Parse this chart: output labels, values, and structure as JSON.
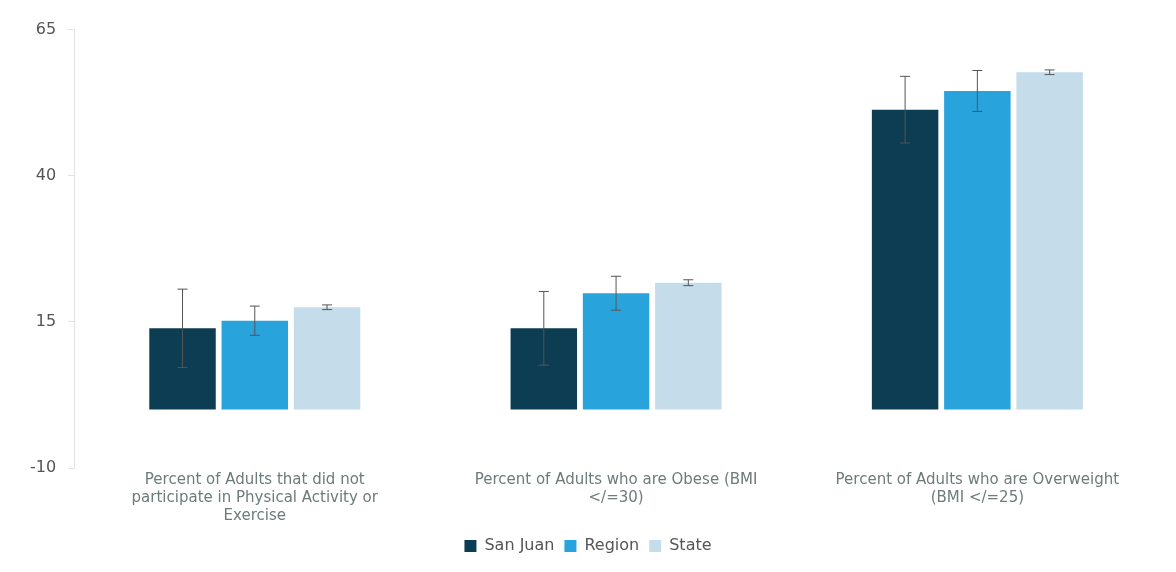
{
  "chart_data": {
    "type": "bar",
    "categories": [
      "Percent of Adults that did not participate in Physical Activity or Exercise",
      "Percent of Adults who are Obese (BMI </=30)",
      "Percent of Adults who are Overweight (BMI </=25)"
    ],
    "series": [
      {
        "name": "San Juan",
        "color": "#0d3d52",
        "values": [
          13.9,
          13.9,
          51.3
        ],
        "errors": [
          6.7,
          6.3,
          5.7
        ]
      },
      {
        "name": "Region",
        "color": "#29a3dc",
        "values": [
          15.2,
          19.9,
          54.5
        ],
        "errors": [
          2.5,
          2.9,
          3.5
        ]
      },
      {
        "name": "State",
        "color": "#c5dcea",
        "values": [
          17.5,
          21.7,
          57.7
        ],
        "errors": [
          0.4,
          0.5,
          0.4
        ]
      }
    ],
    "ylim": [
      -10,
      65
    ],
    "yticks": [
      -10,
      15,
      40,
      65
    ],
    "grid": false,
    "legend": "bottom"
  }
}
